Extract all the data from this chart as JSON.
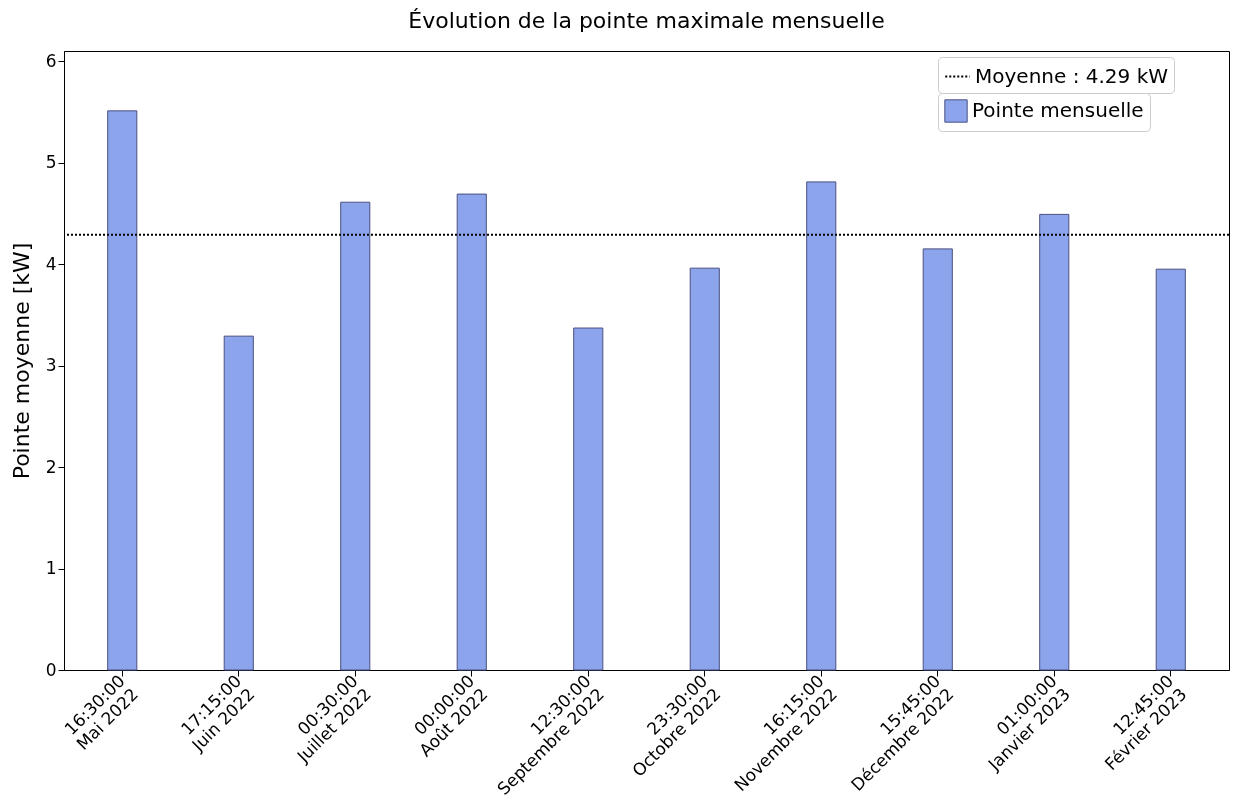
{
  "chart_data": {
    "type": "bar",
    "title": "Évolution de la pointe maximale mensuelle",
    "ylabel": "Pointe moyenne [kW]",
    "categories": [
      "16:30:00\nMai 2022",
      "17:15:00\nJuin 2022",
      "00:30:00\nJuillet 2022",
      "00:00:00\nAoût 2022",
      "12:30:00\nSeptembre 2022",
      "23:30:00\nOctobre 2022",
      "16:15:00\nNovembre 2022",
      "15:45:00\nDécembre 2022",
      "01:00:00\nJanvier 2023",
      "12:45:00\nFévrier 2023"
    ],
    "series": [
      {
        "name": "Pointe mensuelle",
        "color": "#8ba4ec",
        "values": [
          5.51,
          3.29,
          4.61,
          4.69,
          3.37,
          3.96,
          4.81,
          4.15,
          4.49,
          3.95
        ]
      }
    ],
    "ylim": [
      0,
      6.1
    ],
    "yticks": [
      0,
      1,
      2,
      3,
      4,
      5,
      6
    ],
    "ref_lines": [
      {
        "axis": "y",
        "value": 4.29,
        "label": "Moyenne : 4.29 kW",
        "color": "#000000",
        "line_style": "dotted"
      }
    ],
    "legend": "top right",
    "grid": false
  }
}
